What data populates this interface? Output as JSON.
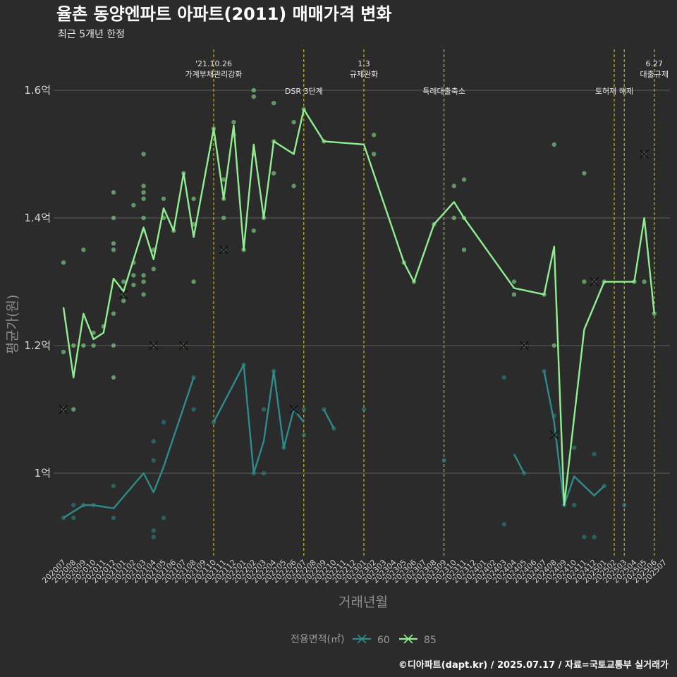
{
  "title": "율촌 동양엔파트 아파트(2011) 매매가격 변화",
  "subtitle": "최근 5개년 한정",
  "caption": "©디아파트(dapt.kr) / 2025.07.17 / 자료=국토교통부 실거래가",
  "chart_data": {
    "type": "line",
    "title": "율촌 동양엔파트 아파트(2011) 매매가격 변화",
    "subtitle": "최근 5개년 한정",
    "xlabel": "거래년월",
    "ylabel": "평균가(원)",
    "ylim": [
      0.87,
      1.66
    ],
    "y_ticks": [
      {
        "value": 1.0,
        "label": "1억"
      },
      {
        "value": 1.2,
        "label": "1.2억"
      },
      {
        "value": 1.4,
        "label": "1.4억"
      },
      {
        "value": 1.6,
        "label": "1.6억"
      }
    ],
    "grid": true,
    "categories": [
      "202007",
      "202008",
      "202009",
      "202010",
      "202011",
      "202012",
      "202101",
      "202102",
      "202103",
      "202104",
      "202105",
      "202106",
      "202107",
      "202108",
      "202109",
      "202110",
      "202111",
      "202112",
      "202201",
      "202202",
      "202203",
      "202204",
      "202205",
      "202206",
      "202207",
      "202208",
      "202209",
      "202210",
      "202211",
      "202212",
      "202301",
      "202302",
      "202303",
      "202304",
      "202305",
      "202306",
      "202307",
      "202308",
      "202309",
      "202310",
      "202311",
      "202312",
      "202401",
      "202402",
      "202403",
      "202404",
      "202405",
      "202406",
      "202407",
      "202408",
      "202409",
      "202410",
      "202411",
      "202412",
      "202501",
      "202502",
      "202503",
      "202504",
      "202505",
      "202506",
      "202507"
    ],
    "legend": {
      "title": "전용면적(㎡)",
      "position": "bottom",
      "entries": [
        "60",
        "85"
      ]
    },
    "events": [
      {
        "x": "202110",
        "label": "'21.10.26\n가계부채관리강화",
        "color": "#d4c41a"
      },
      {
        "x": "202207",
        "label": "DSR 3단계",
        "color": "#d4c41a"
      },
      {
        "x": "202301",
        "label": "1.3\n규제완화",
        "color": "#d4c41a"
      },
      {
        "x": "202309",
        "label": "특례대출축소",
        "color": "#d4c41a"
      },
      {
        "x": "202502",
        "label": "토허제 해제",
        "color": "#d4c41a"
      },
      {
        "x": "202503",
        "label": "",
        "color": "#d4c41a"
      },
      {
        "x": "202506",
        "label": "6.27\n대출규제",
        "color": "#d4c41a"
      }
    ],
    "series": [
      {
        "name": "60",
        "color": "#2e8b8b",
        "line_segments": [
          [
            [
              "202007",
              0.93
            ],
            [
              "202008",
              0.94
            ],
            [
              "202009",
              0.95
            ],
            [
              "202010",
              0.95
            ],
            [
              "202012",
              0.945
            ],
            [
              "202103",
              1.0
            ],
            [
              "202104",
              0.97
            ],
            [
              "202105",
              1.01
            ],
            [
              "202108",
              1.15
            ]
          ],
          [
            [
              "202110",
              1.08
            ],
            [
              "202201",
              1.17
            ],
            [
              "202202",
              1.0
            ],
            [
              "202203",
              1.05
            ],
            [
              "202204",
              1.16
            ],
            [
              "202205",
              1.04
            ],
            [
              "202206",
              1.1
            ],
            [
              "202207",
              1.08
            ]
          ],
          [
            [
              "202209",
              1.1
            ],
            [
              "202210",
              1.07
            ]
          ],
          [
            [
              "202404",
              1.03
            ],
            [
              "202405",
              1.0
            ]
          ],
          [
            [
              "202407",
              1.16
            ],
            [
              "202408",
              1.08
            ],
            [
              "202409",
              0.95
            ],
            [
              "202410",
              0.995
            ],
            [
              "202412",
              0.965
            ],
            [
              "202501",
              0.98
            ]
          ]
        ],
        "points": [
          [
            "202007",
            0.93
          ],
          [
            "202008",
            0.95
          ],
          [
            "202008",
            0.93
          ],
          [
            "202009",
            0.95
          ],
          [
            "202010",
            0.95
          ],
          [
            "202012",
            0.98
          ],
          [
            "202012",
            0.93
          ],
          [
            "202104",
            1.05
          ],
          [
            "202104",
            1.02
          ],
          [
            "202104",
            0.91
          ],
          [
            "202104",
            0.9
          ],
          [
            "202105",
            1.08
          ],
          [
            "202105",
            0.93
          ],
          [
            "202108",
            1.15
          ],
          [
            "202108",
            1.1
          ],
          [
            "202110",
            1.08
          ],
          [
            "202201",
            1.17
          ],
          [
            "202202",
            1.0
          ],
          [
            "202203",
            1.1
          ],
          [
            "202203",
            1.0
          ],
          [
            "202204",
            1.16
          ],
          [
            "202205",
            1.04
          ],
          [
            "202207",
            1.1
          ],
          [
            "202207",
            1.06
          ],
          [
            "202209",
            1.1
          ],
          [
            "202210",
            1.07
          ],
          [
            "202301",
            1.1
          ],
          [
            "202309",
            1.02
          ],
          [
            "202403",
            1.15
          ],
          [
            "202403",
            0.92
          ],
          [
            "202405",
            1.0
          ],
          [
            "202407",
            1.16
          ],
          [
            "202408",
            1.09
          ],
          [
            "202409",
            0.95
          ],
          [
            "202410",
            1.04
          ],
          [
            "202410",
            0.95
          ],
          [
            "202411",
            0.9
          ],
          [
            "202412",
            1.03
          ],
          [
            "202412",
            0.9
          ],
          [
            "202501",
            0.98
          ],
          [
            "202503",
            0.95
          ]
        ],
        "cancelled": [
          [
            "202206",
            1.1
          ],
          [
            "202408",
            1.06
          ]
        ]
      },
      {
        "name": "85",
        "color": "#90ee90",
        "line": [
          [
            "202007",
            1.26
          ],
          [
            "202008",
            1.15
          ],
          [
            "202009",
            1.25
          ],
          [
            "202010",
            1.21
          ],
          [
            "202011",
            1.22
          ],
          [
            "202012",
            1.305
          ],
          [
            "202101",
            1.285
          ],
          [
            "202102",
            1.335
          ],
          [
            "202103",
            1.385
          ],
          [
            "202104",
            1.335
          ],
          [
            "202105",
            1.415
          ],
          [
            "202106",
            1.38
          ],
          [
            "202107",
            1.47
          ],
          [
            "202108",
            1.37
          ],
          [
            "202110",
            1.54
          ],
          [
            "202111",
            1.43
          ],
          [
            "202112",
            1.545
          ],
          [
            "202201",
            1.35
          ],
          [
            "202202",
            1.515
          ],
          [
            "202203",
            1.4
          ],
          [
            "202204",
            1.52
          ],
          [
            "202206",
            1.5
          ],
          [
            "202207",
            1.57
          ],
          [
            "202209",
            1.52
          ],
          [
            "202301",
            1.515
          ],
          [
            "202305",
            1.33
          ],
          [
            "202306",
            1.3
          ],
          [
            "202308",
            1.39
          ],
          [
            "202310",
            1.425
          ],
          [
            "202311",
            1.4
          ],
          [
            "202404",
            1.29
          ],
          [
            "202407",
            1.28
          ],
          [
            "202408",
            1.355
          ],
          [
            "202409",
            0.95
          ],
          [
            "202411",
            1.225
          ],
          [
            "202501",
            1.3
          ],
          [
            "202504",
            1.3
          ],
          [
            "202505",
            1.4
          ],
          [
            "202506",
            1.25
          ]
        ],
        "points": [
          [
            "202007",
            1.33
          ],
          [
            "202007",
            1.19
          ],
          [
            "202008",
            1.2
          ],
          [
            "202008",
            1.1
          ],
          [
            "202009",
            1.35
          ],
          [
            "202009",
            1.2
          ],
          [
            "202010",
            1.2
          ],
          [
            "202010",
            1.22
          ],
          [
            "202011",
            1.23
          ],
          [
            "202012",
            1.44
          ],
          [
            "202012",
            1.4
          ],
          [
            "202012",
            1.36
          ],
          [
            "202012",
            1.35
          ],
          [
            "202012",
            1.25
          ],
          [
            "202012",
            1.2
          ],
          [
            "202012",
            1.15
          ],
          [
            "202101",
            1.3
          ],
          [
            "202101",
            1.27
          ],
          [
            "202102",
            1.42
          ],
          [
            "202102",
            1.33
          ],
          [
            "202102",
            1.31
          ],
          [
            "202102",
            1.295
          ],
          [
            "202103",
            1.5
          ],
          [
            "202103",
            1.45
          ],
          [
            "202103",
            1.44
          ],
          [
            "202103",
            1.43
          ],
          [
            "202103",
            1.4
          ],
          [
            "202103",
            1.38
          ],
          [
            "202103",
            1.31
          ],
          [
            "202103",
            1.3
          ],
          [
            "202103",
            1.28
          ],
          [
            "202104",
            1.35
          ],
          [
            "202104",
            1.32
          ],
          [
            "202105",
            1.43
          ],
          [
            "202105",
            1.4
          ],
          [
            "202106",
            1.38
          ],
          [
            "202107",
            1.47
          ],
          [
            "202108",
            1.43
          ],
          [
            "202108",
            1.39
          ],
          [
            "202108",
            1.3
          ],
          [
            "202110",
            1.54
          ],
          [
            "202111",
            1.46
          ],
          [
            "202111",
            1.43
          ],
          [
            "202111",
            1.4
          ],
          [
            "202112",
            1.55
          ],
          [
            "202112",
            1.53
          ],
          [
            "202201",
            1.35
          ],
          [
            "202202",
            1.6
          ],
          [
            "202202",
            1.59
          ],
          [
            "202202",
            1.5
          ],
          [
            "202202",
            1.38
          ],
          [
            "202203",
            1.4
          ],
          [
            "202204",
            1.58
          ],
          [
            "202204",
            1.52
          ],
          [
            "202204",
            1.47
          ],
          [
            "202206",
            1.55
          ],
          [
            "202206",
            1.45
          ],
          [
            "202207",
            1.57
          ],
          [
            "202209",
            1.52
          ],
          [
            "202302",
            1.53
          ],
          [
            "202302",
            1.5
          ],
          [
            "202305",
            1.33
          ],
          [
            "202306",
            1.3
          ],
          [
            "202308",
            1.39
          ],
          [
            "202310",
            1.45
          ],
          [
            "202310",
            1.4
          ],
          [
            "202311",
            1.46
          ],
          [
            "202311",
            1.4
          ],
          [
            "202311",
            1.35
          ],
          [
            "202404",
            1.3
          ],
          [
            "202404",
            1.28
          ],
          [
            "202407",
            1.28
          ],
          [
            "202408",
            1.515
          ],
          [
            "202408",
            1.2
          ],
          [
            "202411",
            1.47
          ],
          [
            "202411",
            1.3
          ],
          [
            "202501",
            1.3
          ],
          [
            "202504",
            1.3
          ],
          [
            "202505",
            1.3
          ],
          [
            "202506",
            1.25
          ]
        ],
        "cancelled": [
          [
            "202007",
            1.1
          ],
          [
            "202101",
            1.28
          ],
          [
            "202104",
            1.2
          ],
          [
            "202107",
            1.2
          ],
          [
            "202111",
            1.35
          ],
          [
            "202405",
            1.2
          ],
          [
            "202412",
            1.3
          ],
          [
            "202505",
            1.5
          ]
        ]
      }
    ]
  }
}
